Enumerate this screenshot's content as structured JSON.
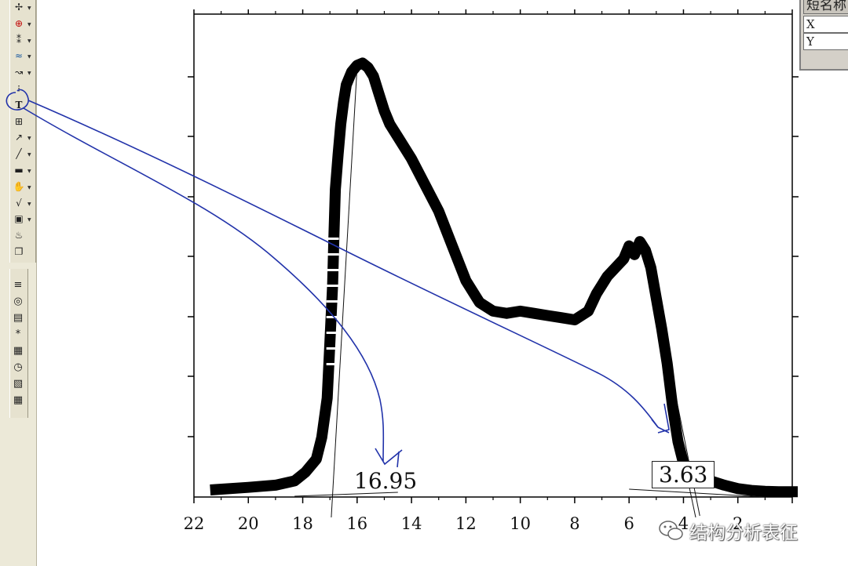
{
  "toolbar": {
    "tools": [
      {
        "name": "data-reader-icon",
        "glyph": "✢"
      },
      {
        "name": "screen-reader-icon",
        "glyph": "⊕"
      },
      {
        "name": "data-selector-icon",
        "glyph": "⁑"
      },
      {
        "name": "draw-data-icon",
        "glyph": "≈"
      },
      {
        "name": "mask-points-icon",
        "glyph": "↝"
      },
      {
        "name": "scale-icon",
        "glyph": "⁝"
      },
      {
        "name": "text-tool-icon",
        "glyph": "T"
      },
      {
        "name": "zoom-panel-icon",
        "glyph": "⊞"
      },
      {
        "name": "arrow-tool-icon",
        "glyph": "↗"
      },
      {
        "name": "line-tool-icon",
        "glyph": "╱"
      },
      {
        "name": "rectangle-tool-icon",
        "glyph": "▬"
      },
      {
        "name": "hand-tool-icon",
        "glyph": "✋"
      },
      {
        "name": "equation-icon",
        "glyph": "√"
      },
      {
        "name": "graph-object-icon",
        "glyph": "▣"
      },
      {
        "name": "region-icon",
        "glyph": "♨"
      },
      {
        "name": "layer-icon",
        "glyph": "❐"
      }
    ],
    "tools2": [
      {
        "name": "lines-icon",
        "glyph": "≡"
      },
      {
        "name": "target-icon",
        "glyph": "◎"
      },
      {
        "name": "column-icon",
        "glyph": "▤"
      },
      {
        "name": "asterisk-icon",
        "glyph": "*"
      },
      {
        "name": "grid-icon",
        "glyph": "▦"
      },
      {
        "name": "clock-icon",
        "glyph": "◷"
      },
      {
        "name": "folder-icon",
        "glyph": "▧"
      },
      {
        "name": "table-icon",
        "glyph": "▦"
      }
    ]
  },
  "worksheet": {
    "header": "短名称",
    "rows": [
      "X",
      "Y"
    ]
  },
  "chart_data": {
    "type": "line",
    "xlim": [
      22,
      0
    ],
    "ylim": [
      0,
      1
    ],
    "xticks": [
      "22",
      "20",
      "18",
      "16",
      "14",
      "12",
      "10",
      "8",
      "6",
      "4",
      "2"
    ],
    "x": [
      21.2,
      20,
      19,
      18.3,
      17.9,
      17.5,
      17.3,
      17.1,
      17.0,
      16.9,
      16.85,
      16.8,
      16.7,
      16.6,
      16.5,
      16.4,
      16.2,
      16.0,
      15.8,
      15.6,
      15.4,
      15.2,
      15.0,
      14.8,
      14.5,
      14.0,
      13.5,
      13.0,
      12.5,
      12.0,
      11.5,
      11.0,
      10.5,
      10.0,
      9.5,
      9.0,
      8.5,
      8.0,
      7.5,
      7.2,
      6.8,
      6.5,
      6.2,
      6.0,
      5.8,
      5.6,
      5.4,
      5.2,
      5.0,
      4.8,
      4.6,
      4.4,
      4.2,
      4.0,
      3.8,
      3.5,
      3.0,
      2.5,
      2.0,
      1.5,
      1.0,
      0.5,
      0.0
    ],
    "y": [
      0.01,
      0.015,
      0.02,
      0.03,
      0.05,
      0.08,
      0.13,
      0.22,
      0.35,
      0.48,
      0.6,
      0.7,
      0.78,
      0.85,
      0.9,
      0.94,
      0.97,
      0.985,
      0.99,
      0.98,
      0.96,
      0.92,
      0.88,
      0.85,
      0.82,
      0.77,
      0.71,
      0.65,
      0.57,
      0.49,
      0.44,
      0.42,
      0.415,
      0.42,
      0.415,
      0.41,
      0.405,
      0.4,
      0.42,
      0.46,
      0.5,
      0.52,
      0.54,
      0.57,
      0.55,
      0.58,
      0.56,
      0.52,
      0.45,
      0.38,
      0.3,
      0.2,
      0.12,
      0.07,
      0.055,
      0.045,
      0.03,
      0.02,
      0.012,
      0.008,
      0.006,
      0.005,
      0.005
    ],
    "annotations": [
      {
        "text": "16.95",
        "x": 16.95
      },
      {
        "text": "3.63",
        "x": 3.63
      }
    ]
  },
  "watermark": {
    "text": "结构分析表征",
    "icon": "wechat-icon"
  }
}
